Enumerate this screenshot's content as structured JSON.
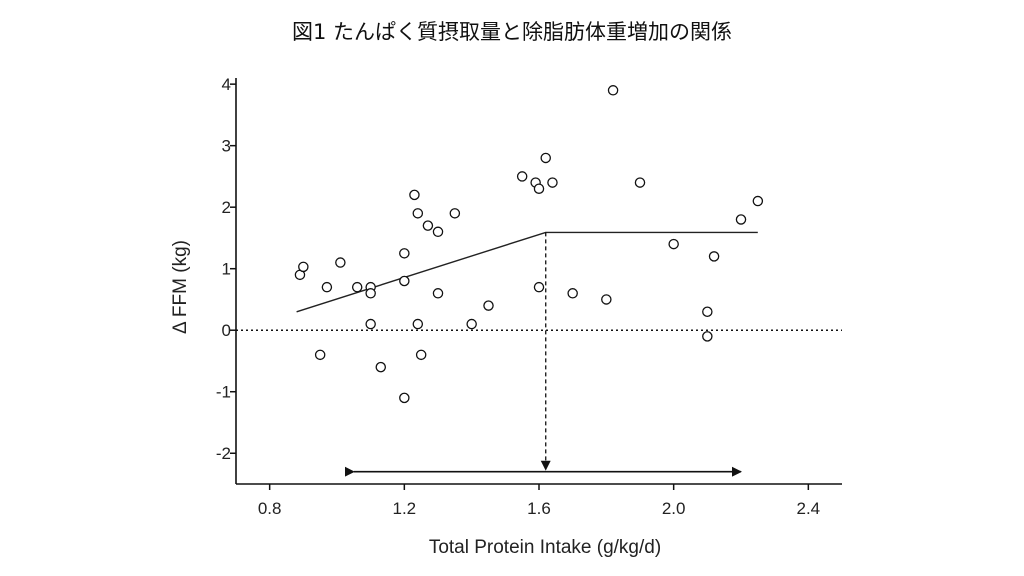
{
  "chart_data": {
    "type": "scatter",
    "title": "図1 たんぱく質摂取量と除脂肪体重増加の関係",
    "xlabel": "Total Protein Intake (g/kg/d)",
    "ylabel": "Δ FFM (kg)",
    "xlim": [
      0.7,
      2.5
    ],
    "ylim": [
      -2.5,
      4.1
    ],
    "xticks": [
      "0.8",
      "1.2",
      "1.6",
      "2.0",
      "2.4"
    ],
    "yticks": [
      "4",
      "3",
      "2",
      "1",
      "0",
      "-1",
      "-2"
    ],
    "points": [
      {
        "x": 0.89,
        "y": 0.9
      },
      {
        "x": 0.9,
        "y": 1.03
      },
      {
        "x": 0.95,
        "y": -0.4
      },
      {
        "x": 0.97,
        "y": 0.7
      },
      {
        "x": 1.01,
        "y": 1.1
      },
      {
        "x": 1.06,
        "y": 0.7
      },
      {
        "x": 1.1,
        "y": 0.7
      },
      {
        "x": 1.1,
        "y": 0.6
      },
      {
        "x": 1.1,
        "y": 0.1
      },
      {
        "x": 1.13,
        "y": -0.6
      },
      {
        "x": 1.2,
        "y": 1.25
      },
      {
        "x": 1.2,
        "y": 0.8
      },
      {
        "x": 1.2,
        "y": -1.1
      },
      {
        "x": 1.23,
        "y": 2.2
      },
      {
        "x": 1.24,
        "y": 1.9
      },
      {
        "x": 1.24,
        "y": 0.1
      },
      {
        "x": 1.25,
        "y": -0.4
      },
      {
        "x": 1.27,
        "y": 1.7
      },
      {
        "x": 1.3,
        "y": 1.6
      },
      {
        "x": 1.3,
        "y": 0.6
      },
      {
        "x": 1.35,
        "y": 1.9
      },
      {
        "x": 1.4,
        "y": 0.1
      },
      {
        "x": 1.45,
        "y": 0.4
      },
      {
        "x": 1.55,
        "y": 2.5
      },
      {
        "x": 1.59,
        "y": 2.4
      },
      {
        "x": 1.6,
        "y": 2.3
      },
      {
        "x": 1.6,
        "y": 0.7
      },
      {
        "x": 1.62,
        "y": 2.8
      },
      {
        "x": 1.64,
        "y": 2.4
      },
      {
        "x": 1.7,
        "y": 0.6
      },
      {
        "x": 1.8,
        "y": 0.5
      },
      {
        "x": 1.82,
        "y": 3.9
      },
      {
        "x": 1.9,
        "y": 2.4
      },
      {
        "x": 2.0,
        "y": 1.4
      },
      {
        "x": 2.1,
        "y": 0.3
      },
      {
        "x": 2.1,
        "y": -0.1
      },
      {
        "x": 2.12,
        "y": 1.2
      },
      {
        "x": 2.2,
        "y": 1.8
      },
      {
        "x": 2.25,
        "y": 2.1
      }
    ],
    "fit_line": [
      {
        "x": 0.88,
        "y": 0.3
      },
      {
        "x": 1.62,
        "y": 1.59
      },
      {
        "x": 2.25,
        "y": 1.59
      }
    ],
    "breakpoint": {
      "x": 1.62,
      "y": 1.59
    },
    "range_arrow": {
      "x_start": 1.05,
      "x_end": 2.2,
      "y": -2.3
    },
    "zero_line": 0,
    "grid": false
  }
}
